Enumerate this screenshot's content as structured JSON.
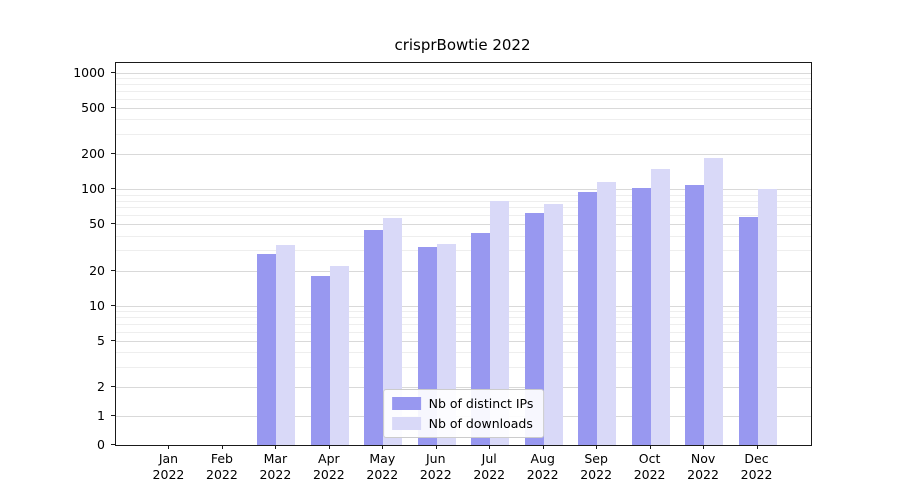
{
  "chart_data": {
    "type": "bar",
    "title": "crisprBowtie 2022",
    "categories": [
      "Jan 2022",
      "Feb 2022",
      "Mar 2022",
      "Apr 2022",
      "May 2022",
      "Jun 2022",
      "Jul 2022",
      "Aug 2022",
      "Sep 2022",
      "Oct 2022",
      "Nov 2022",
      "Dec 2022"
    ],
    "series": [
      {
        "name": "Nb of distinct IPs",
        "color": "#9898f0",
        "values": [
          0,
          0,
          28,
          18,
          45,
          32,
          42,
          63,
          95,
          103,
          110,
          58
        ]
      },
      {
        "name": "Nb of downloads",
        "color": "#d9d9f8",
        "values": [
          0,
          0,
          33,
          22,
          57,
          34,
          80,
          75,
          115,
          150,
          185,
          100
        ]
      }
    ],
    "yscale": "symlog",
    "yticks": [
      0,
      1,
      2,
      5,
      10,
      20,
      50,
      100,
      200,
      500,
      1000
    ],
    "grid": true,
    "legend_position": "lower center",
    "colors": {
      "grid_major": "#d9d9d9",
      "grid_minor": "#eeeeee",
      "spine": "#1a1a1a"
    }
  }
}
